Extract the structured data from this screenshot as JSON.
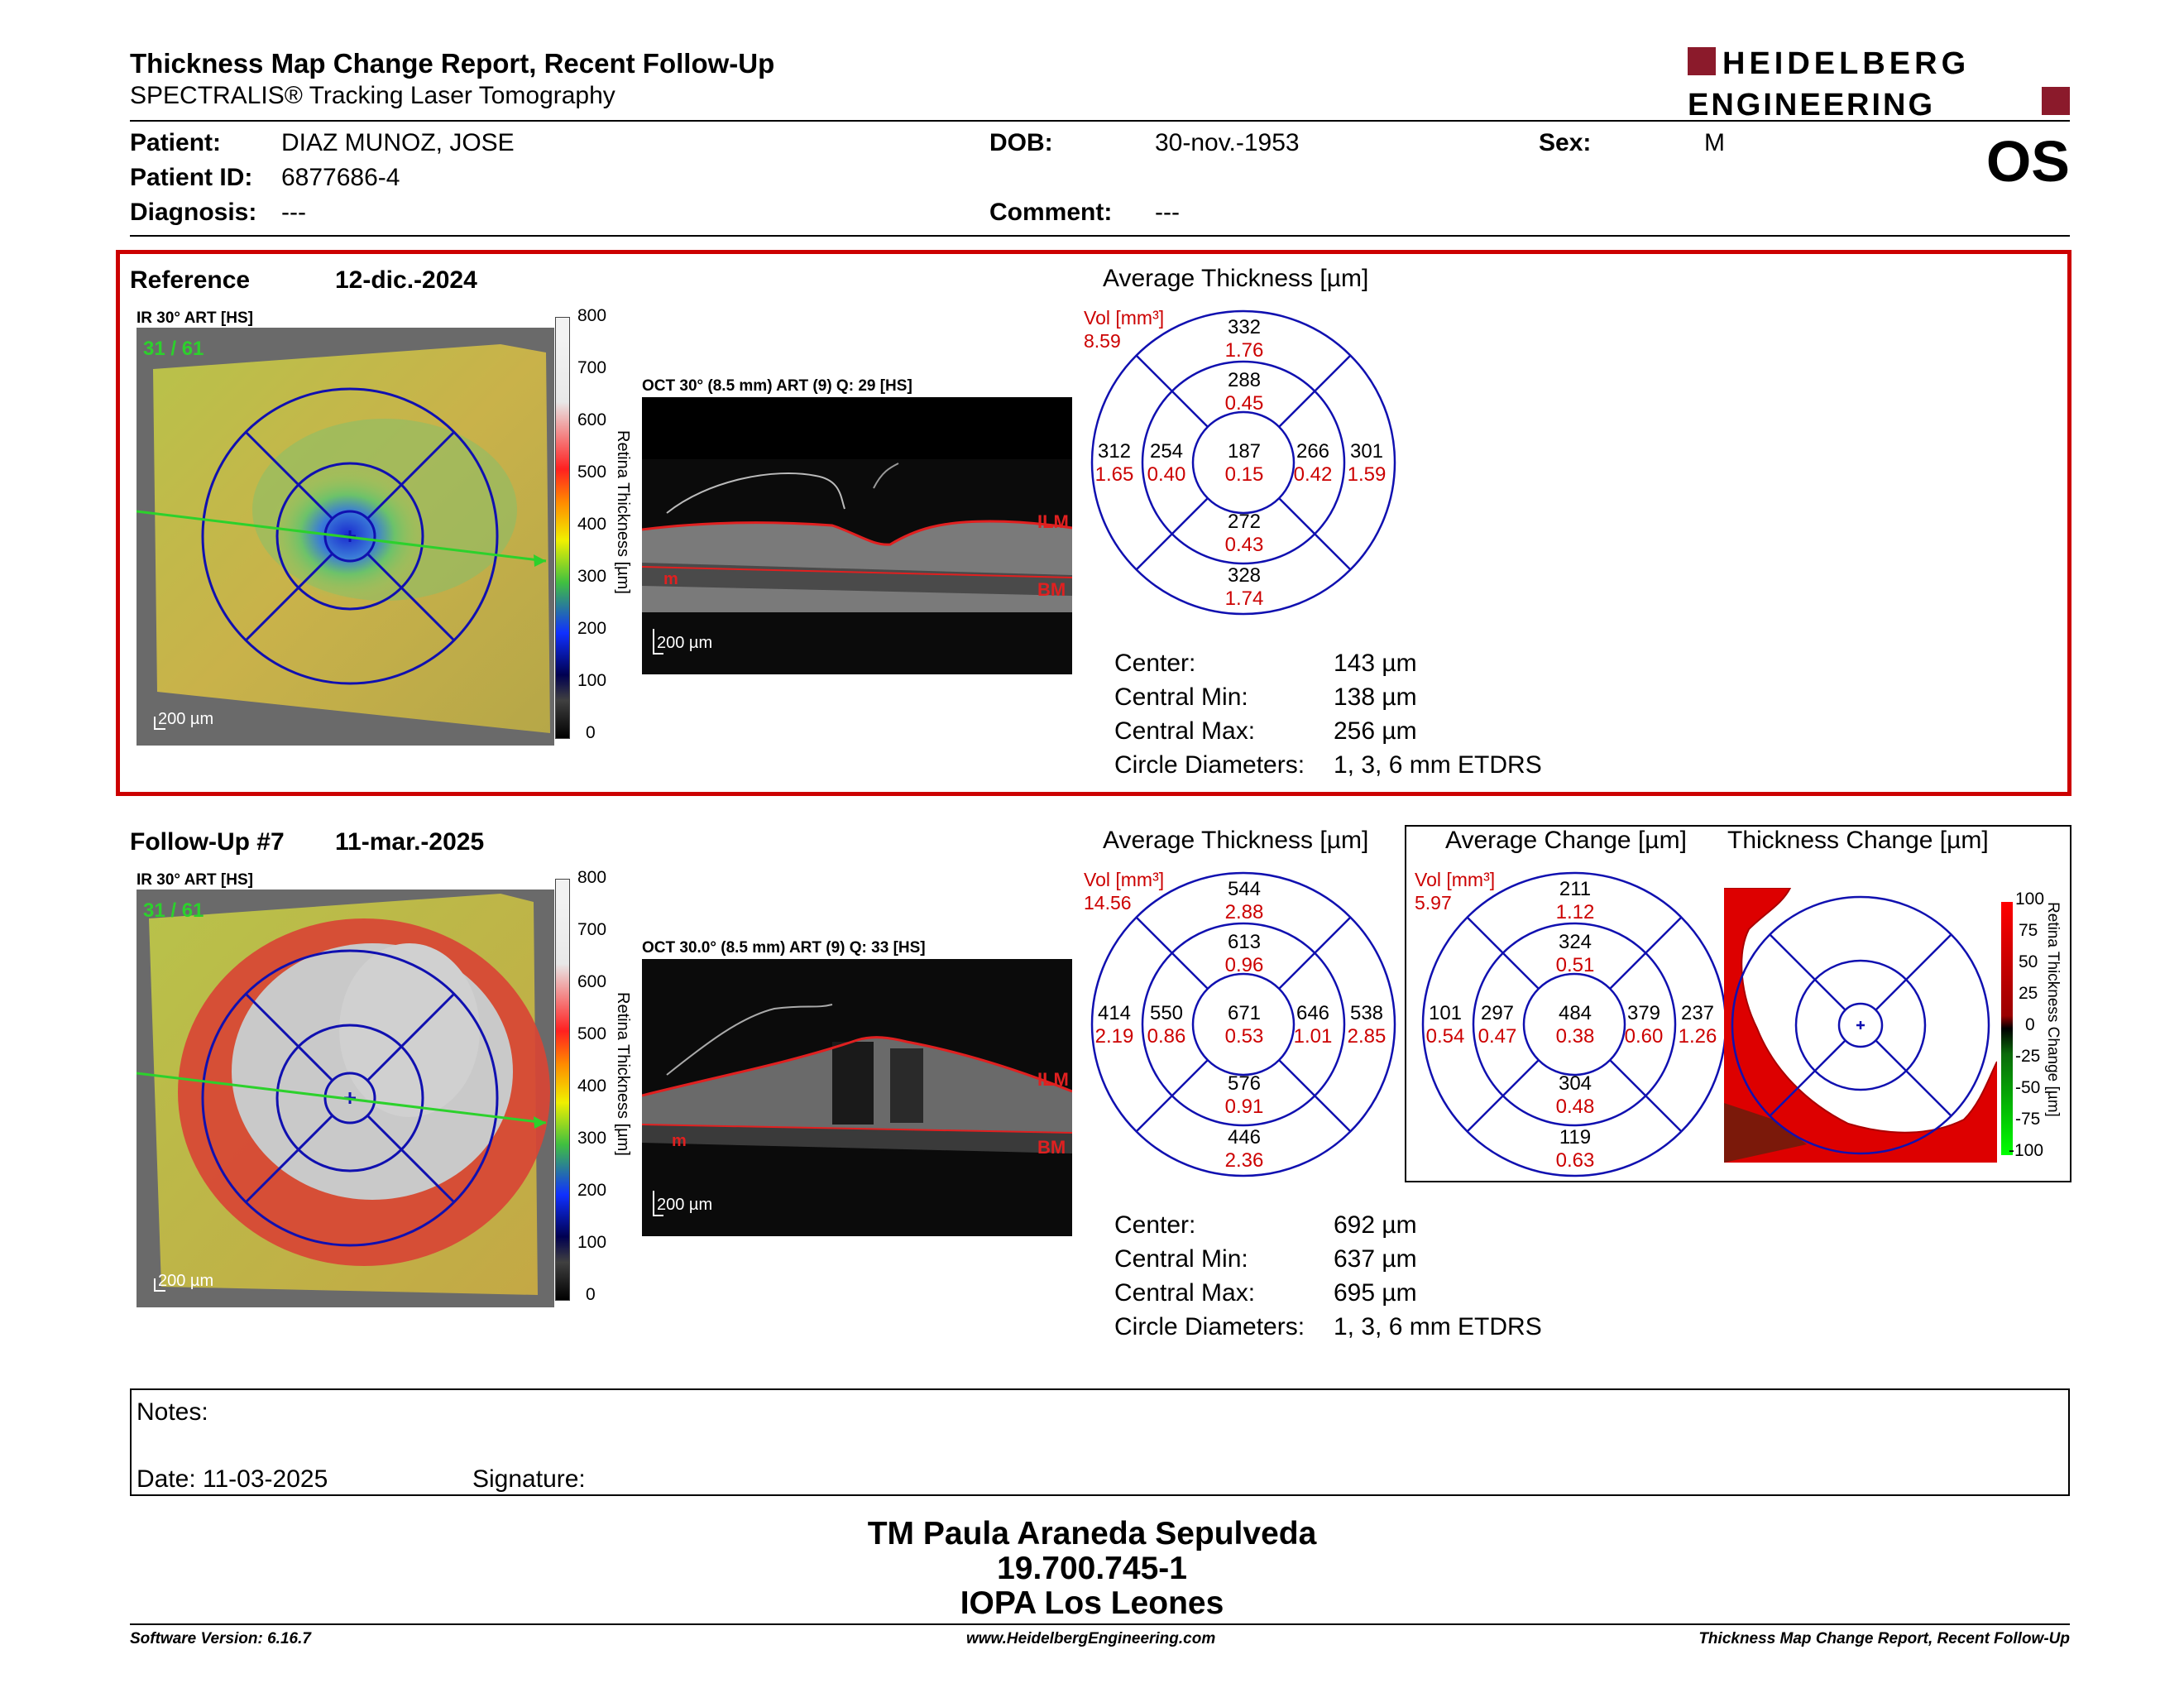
{
  "header": {
    "title": "Thickness Map Change Report, Recent Follow-Up",
    "subtitle": "SPECTRALIS® Tracking Laser Tomography",
    "logo_line1": "HEIDELBERG",
    "logo_line2": "ENGINEERING",
    "brand_color": "#8b1a2b"
  },
  "patient": {
    "patient_label": "Patient:",
    "patient_value": "DIAZ MUNOZ, JOSE",
    "id_label": "Patient ID:",
    "id_value": "6877686-4",
    "diagnosis_label": "Diagnosis:",
    "diagnosis_value": "---",
    "dob_label": "DOB:",
    "dob_value": "30-nov.-1953",
    "comment_label": "Comment:",
    "comment_value": "---",
    "sex_label": "Sex:",
    "sex_value": "M",
    "eye": "OS"
  },
  "reference": {
    "label": "Reference",
    "date": "12-dic.-2024",
    "ir_label": "IR 30° ART [HS]",
    "frame": "31 / 61",
    "scale_bar": "200 µm",
    "oct_label": "OCT 30° (8.5 mm) ART (9) Q: 29 [HS]",
    "oct_scale": "200 µm",
    "ilm": "ILM",
    "bm": "BM",
    "m": "m",
    "avg_title": "Average Thickness [µm]",
    "vol_label": "Vol [mm³]",
    "vol_value": "8.59",
    "grid": {
      "center": [
        "187",
        "0.15"
      ],
      "inner_sup": [
        "288",
        "0.45"
      ],
      "inner_inf": [
        "272",
        "0.43"
      ],
      "inner_nas": [
        "254",
        "0.40"
      ],
      "inner_tmp": [
        "266",
        "0.42"
      ],
      "outer_sup": [
        "332",
        "1.76"
      ],
      "outer_inf": [
        "328",
        "1.74"
      ],
      "outer_nas": [
        "312",
        "1.65"
      ],
      "outer_tmp": [
        "301",
        "1.59"
      ]
    },
    "stats": [
      {
        "label": "Center:",
        "value": "143 µm"
      },
      {
        "label": "Central Min:",
        "value": "138 µm"
      },
      {
        "label": "Central Max:",
        "value": "256 µm"
      },
      {
        "label": "Circle Diameters:",
        "value": "1, 3, 6 mm ETDRS"
      }
    ]
  },
  "followup": {
    "label": "Follow-Up #7",
    "date": "11-mar.-2025",
    "ir_label": "IR 30° ART [HS]",
    "frame": "31 / 61",
    "scale_bar": "200 µm",
    "oct_label": "OCT 30.0° (8.5 mm) ART (9) Q: 33 [HS]",
    "oct_scale": "200 µm",
    "ilm": "ILM",
    "bm": "BM",
    "m": "m",
    "avg_title": "Average Thickness [µm]",
    "vol_label": "Vol [mm³]",
    "vol_value": "14.56",
    "grid": {
      "center": [
        "671",
        "0.53"
      ],
      "inner_sup": [
        "613",
        "0.96"
      ],
      "inner_inf": [
        "576",
        "0.91"
      ],
      "inner_nas": [
        "550",
        "0.86"
      ],
      "inner_tmp": [
        "646",
        "1.01"
      ],
      "outer_sup": [
        "544",
        "2.88"
      ],
      "outer_inf": [
        "446",
        "2.36"
      ],
      "outer_nas": [
        "414",
        "2.19"
      ],
      "outer_tmp": [
        "538",
        "2.85"
      ]
    },
    "change_title": "Average Change [µm]",
    "change_vol_label": "Vol [mm³]",
    "change_vol_value": "5.97",
    "change_grid": {
      "center": [
        "484",
        "0.38"
      ],
      "inner_sup": [
        "324",
        "0.51"
      ],
      "inner_inf": [
        "304",
        "0.48"
      ],
      "inner_nas": [
        "297",
        "0.47"
      ],
      "inner_tmp": [
        "379",
        "0.60"
      ],
      "outer_sup": [
        "211",
        "1.12"
      ],
      "outer_inf": [
        "119",
        "0.63"
      ],
      "outer_nas": [
        "101",
        "0.54"
      ],
      "outer_tmp": [
        "237",
        "1.26"
      ]
    },
    "thickness_change_title": "Thickness Change [µm]",
    "change_scale_title": "Retina Thickness Change [µm]",
    "change_ticks": [
      "100",
      "75",
      "50",
      "25",
      "0",
      "-25",
      "-50",
      "-75",
      "-100"
    ],
    "stats": [
      {
        "label": "Center:",
        "value": "692 µm"
      },
      {
        "label": "Central Min:",
        "value": "637 µm"
      },
      {
        "label": "Central Max:",
        "value": "695 µm"
      },
      {
        "label": "Circle Diameters:",
        "value": "1, 3, 6 mm ETDRS"
      }
    ]
  },
  "thickness_scale": {
    "title": "Retina Thickness [µm]",
    "ticks": [
      "800",
      "700",
      "600",
      "500",
      "400",
      "300",
      "200",
      "100",
      "0"
    ]
  },
  "notes": {
    "notes_label": "Notes:",
    "date_label": "Date: 11-03-2025",
    "signature_label": "Signature:"
  },
  "signature": {
    "name": "TM Paula Araneda Sepulveda",
    "rut": "19.700.745-1",
    "institution": "IOPA Los Leones"
  },
  "footer": {
    "version": "Software Version: 6.16.7",
    "website": "www.HeidelbergEngineering.com",
    "report": "Thickness Map Change Report, Recent Follow-Up"
  },
  "colors": {
    "value_red": "#cc0000",
    "grid_blue": "#1010b0",
    "frame_red": "#c00000",
    "fovea_green": "#2cd12c"
  }
}
